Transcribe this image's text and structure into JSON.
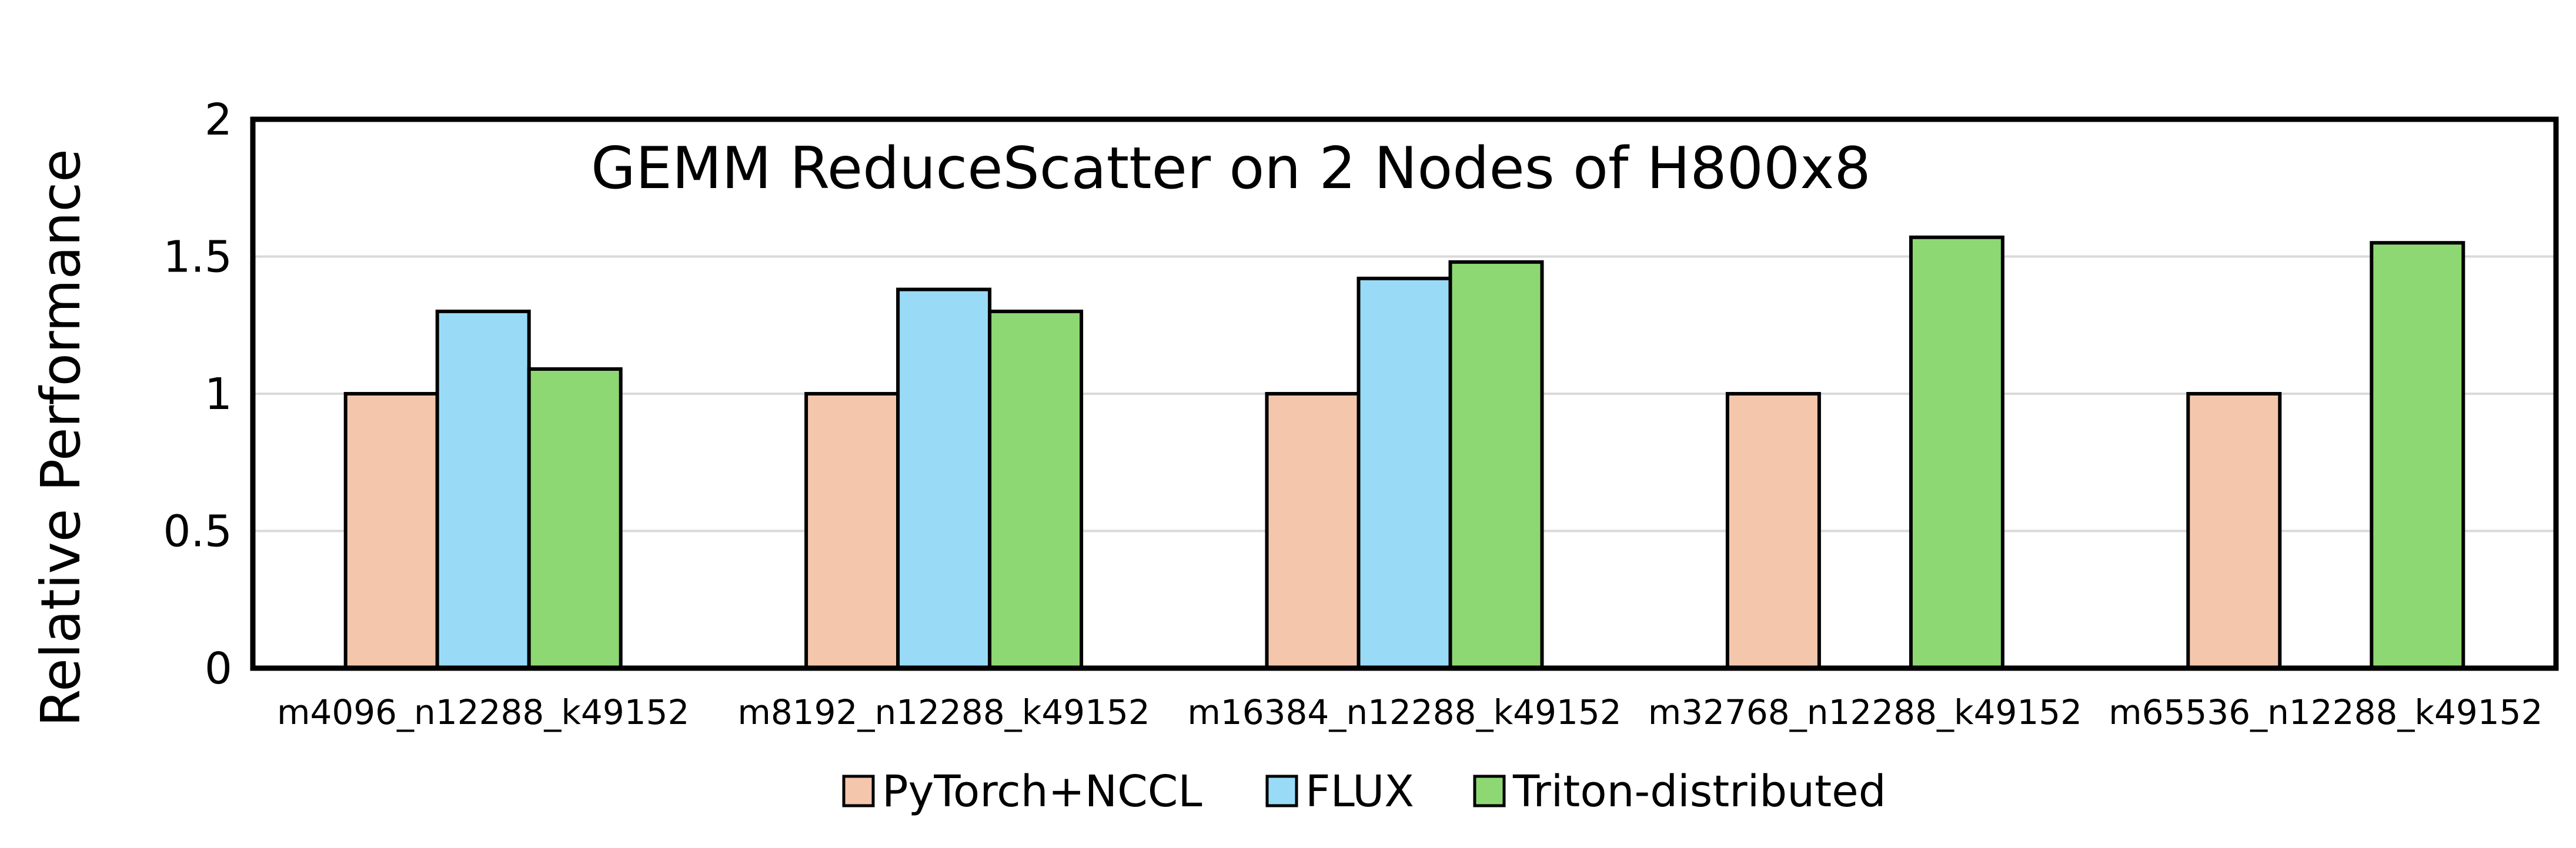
{
  "chart_data": {
    "type": "bar",
    "title": "GEMM ReduceScatter on 2 Nodes of H800x8",
    "ylabel": "Relative Performance",
    "xlabel": "",
    "ylim": [
      0,
      2
    ],
    "yticks": [
      0,
      0.5,
      1,
      1.5,
      2
    ],
    "ytick_labels": [
      "0",
      "0.5",
      "1",
      "1.5",
      "2"
    ],
    "grid": "horizontal",
    "legend_position": "bottom",
    "categories": [
      "m4096_n12288_k49152",
      "m8192_n12288_k49152",
      "m16384_n12288_k49152",
      "m32768_n12288_k49152",
      "m65536_n12288_k49152"
    ],
    "series": [
      {
        "name": "PyTorch+NCCL",
        "color": "#F4C7AD",
        "values": [
          1.0,
          1.0,
          1.0,
          1.0,
          1.0
        ]
      },
      {
        "name": "FLUX",
        "color": "#99DBF7",
        "values": [
          1.3,
          1.38,
          1.42,
          null,
          null
        ]
      },
      {
        "name": "Triton-distributed",
        "color": "#8ED873",
        "values": [
          1.09,
          1.3,
          1.48,
          1.57,
          1.55
        ]
      }
    ]
  }
}
